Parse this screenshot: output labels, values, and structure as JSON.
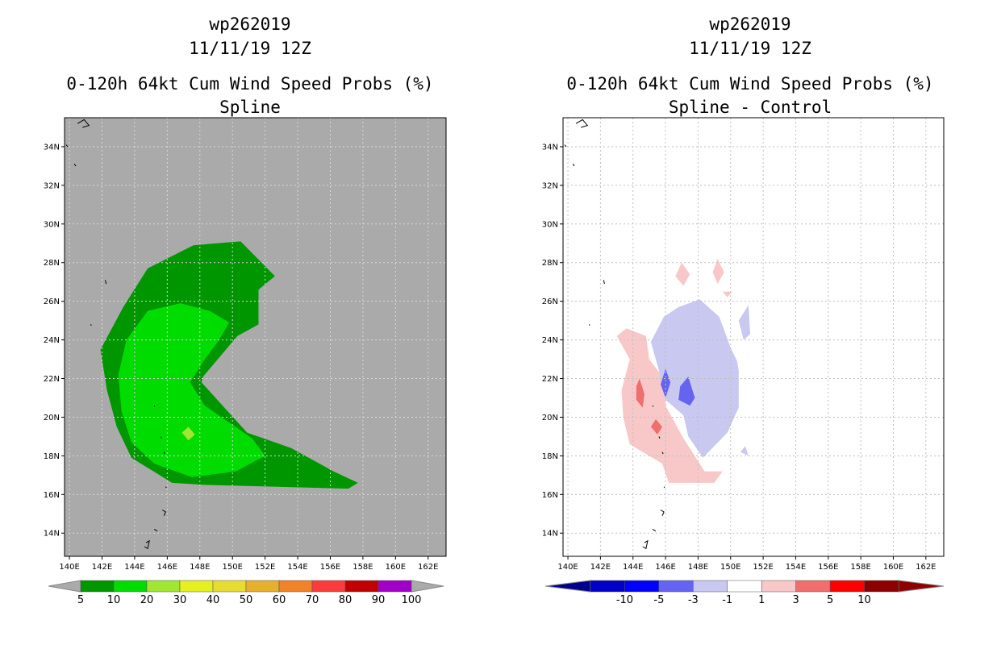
{
  "chart_data": [
    {
      "type": "heatmap",
      "storm_id": "wp262019",
      "date": "11/11/19 12Z",
      "title": "0-120h 64kt Cum Wind Speed Probs (%)",
      "subtitle": "Spline",
      "x_ticks": [
        "140E",
        "142E",
        "144E",
        "146E",
        "148E",
        "150E",
        "152E",
        "154E",
        "156E",
        "158E",
        "160E",
        "162E"
      ],
      "y_ticks": [
        "14N",
        "16N",
        "18N",
        "20N",
        "22N",
        "24N",
        "26N",
        "28N",
        "30N",
        "32N",
        "34N"
      ],
      "xlim": [
        139.7,
        163.1
      ],
      "ylim": [
        12.8,
        35.5
      ],
      "colorbar": {
        "labels": [
          "5",
          "10",
          "20",
          "30",
          "40",
          "50",
          "60",
          "70",
          "80",
          "90",
          "100"
        ],
        "colors": [
          "#009600",
          "#00dc00",
          "#a0e632",
          "#e6f020",
          "#e6dc32",
          "#e6af2d",
          "#f08228",
          "#fa3c3c",
          "#c00000",
          "#a000c8"
        ]
      },
      "contours": [
        {
          "level": "5-10",
          "color": "#009600",
          "points": [
            [
              150.5,
              29.1
            ],
            [
              152.6,
              27.3
            ],
            [
              151.6,
              26.6
            ],
            [
              151.6,
              24.8
            ],
            [
              150.3,
              24.2
            ],
            [
              148.2,
              22.1
            ],
            [
              148.1,
              21.8
            ],
            [
              150.9,
              19.2
            ],
            [
              153.6,
              18.4
            ],
            [
              156.2,
              17.2
            ],
            [
              157.7,
              16.6
            ],
            [
              157.1,
              16.3
            ],
            [
              148.2,
              16.5
            ],
            [
              146.3,
              16.6
            ],
            [
              143.8,
              17.9
            ],
            [
              142.9,
              19.5
            ],
            [
              142.3,
              21.4
            ],
            [
              141.9,
              23.5
            ],
            [
              143.3,
              25.7
            ],
            [
              144.8,
              27.7
            ],
            [
              147.6,
              28.9
            ]
          ]
        },
        {
          "level": "10-20",
          "color": "#00dc00",
          "points": [
            [
              148.6,
              25.5
            ],
            [
              149.8,
              24.9
            ],
            [
              149.1,
              23.9
            ],
            [
              148.3,
              23.0
            ],
            [
              147.4,
              21.8
            ],
            [
              148.3,
              20.6
            ],
            [
              151.2,
              18.9
            ],
            [
              152.0,
              18.0
            ],
            [
              150.2,
              17.2
            ],
            [
              147.5,
              16.9
            ],
            [
              145.2,
              17.6
            ],
            [
              143.8,
              18.7
            ],
            [
              143.2,
              20.3
            ],
            [
              143.0,
              22.2
            ],
            [
              143.5,
              24.0
            ],
            [
              144.8,
              25.5
            ],
            [
              146.8,
              25.9
            ]
          ]
        },
        {
          "level": "20-30",
          "color": "#a0e632",
          "points": [
            [
              147.3,
              19.5
            ],
            [
              147.7,
              19.1
            ],
            [
              147.3,
              18.8
            ],
            [
              146.9,
              19.2
            ]
          ]
        }
      ]
    },
    {
      "type": "heatmap",
      "storm_id": "wp262019",
      "date": "11/11/19 12Z",
      "title": "0-120h 64kt Cum Wind Speed Probs (%)",
      "subtitle": "Spline - Control",
      "x_ticks": [
        "140E",
        "142E",
        "144E",
        "146E",
        "148E",
        "150E",
        "152E",
        "154E",
        "156E",
        "158E",
        "160E",
        "162E"
      ],
      "y_ticks": [
        "14N",
        "16N",
        "18N",
        "20N",
        "22N",
        "24N",
        "26N",
        "28N",
        "30N",
        "32N",
        "34N"
      ],
      "xlim": [
        139.7,
        163.1
      ],
      "ylim": [
        12.8,
        35.5
      ],
      "colorbar": {
        "labels": [
          "-10",
          "-5",
          "-3",
          "-1",
          "1",
          "3",
          "5",
          "10"
        ],
        "colors": [
          "#0000c8",
          "#0000ff",
          "#6464f0",
          "#c8c8f0",
          "#ffffff",
          "#f8c8c8",
          "#f06e6e",
          "#ff0000",
          "#8c0000"
        ]
      },
      "contours": [
        {
          "level": "1-3",
          "color": "#f8c8c8",
          "points": [
            [
              143.6,
              24.6
            ],
            [
              144.8,
              24.2
            ],
            [
              145.0,
              23.0
            ],
            [
              146.0,
              21.9
            ],
            [
              146.0,
              20.6
            ],
            [
              147.1,
              18.9
            ],
            [
              148.4,
              17.2
            ],
            [
              149.5,
              17.2
            ],
            [
              149.0,
              16.6
            ],
            [
              147.5,
              16.6
            ],
            [
              146.2,
              16.6
            ],
            [
              145.8,
              17.6
            ],
            [
              144.6,
              18.2
            ],
            [
              143.8,
              18.6
            ],
            [
              143.4,
              20.0
            ],
            [
              143.3,
              21.4
            ],
            [
              143.8,
              23.0
            ],
            [
              143.0,
              24.2
            ]
          ]
        },
        {
          "level": "1-3",
          "color": "#f8c8c8",
          "points": [
            [
              149.2,
              28.2
            ],
            [
              149.6,
              27.5
            ],
            [
              149.2,
              26.9
            ],
            [
              148.9,
              27.5
            ]
          ]
        },
        {
          "level": "1-3",
          "color": "#f8c8c8",
          "points": [
            [
              147.0,
              28.0
            ],
            [
              147.5,
              27.4
            ],
            [
              147.1,
              26.8
            ],
            [
              146.6,
              27.3
            ]
          ]
        },
        {
          "level": "1-3",
          "color": "#f8c8c8",
          "points": [
            [
              149.5,
              26.5
            ],
            [
              150.1,
              26.5
            ],
            [
              149.8,
              26.2
            ]
          ]
        },
        {
          "level": "3-5",
          "color": "#f06e6e",
          "points": [
            [
              144.4,
              22.0
            ],
            [
              144.7,
              21.2
            ],
            [
              144.6,
              20.5
            ],
            [
              144.2,
              20.9
            ],
            [
              144.2,
              21.6
            ]
          ]
        },
        {
          "level": "3-5",
          "color": "#f06e6e",
          "points": [
            [
              145.4,
              19.9
            ],
            [
              145.8,
              19.5
            ],
            [
              145.5,
              19.1
            ],
            [
              145.1,
              19.5
            ]
          ]
        },
        {
          "level": "-1--3",
          "color": "#c8c8f0",
          "points": [
            [
              148.1,
              26.1
            ],
            [
              149.3,
              25.2
            ],
            [
              150.0,
              23.6
            ],
            [
              150.4,
              22.9
            ],
            [
              150.5,
              22.4
            ],
            [
              150.5,
              20.5
            ],
            [
              149.8,
              19.2
            ],
            [
              148.3,
              17.9
            ],
            [
              147.4,
              19.0
            ],
            [
              147.1,
              20.1
            ],
            [
              146.0,
              20.9
            ],
            [
              145.6,
              22.4
            ],
            [
              145.1,
              23.9
            ],
            [
              145.9,
              25.2
            ],
            [
              146.8,
              25.7
            ]
          ]
        },
        {
          "level": "-1--3",
          "color": "#c8c8f0",
          "points": [
            [
              151.1,
              25.8
            ],
            [
              151.2,
              24.3
            ],
            [
              150.8,
              24.0
            ],
            [
              150.5,
              25.0
            ]
          ]
        },
        {
          "level": "-1--3",
          "color": "#c8c8f0",
          "points": [
            [
              150.9,
              18.5
            ],
            [
              151.1,
              18.0
            ],
            [
              150.6,
              18.2
            ]
          ]
        },
        {
          "level": "-3--5",
          "color": "#6464f0",
          "points": [
            [
              146.0,
              22.5
            ],
            [
              146.3,
              21.8
            ],
            [
              146.0,
              21.0
            ],
            [
              145.7,
              21.7
            ]
          ]
        },
        {
          "level": "-3--5",
          "color": "#6464f0",
          "points": [
            [
              147.4,
              22.1
            ],
            [
              147.8,
              21.0
            ],
            [
              147.5,
              20.6
            ],
            [
              146.8,
              20.9
            ],
            [
              146.9,
              21.6
            ]
          ]
        }
      ]
    }
  ]
}
